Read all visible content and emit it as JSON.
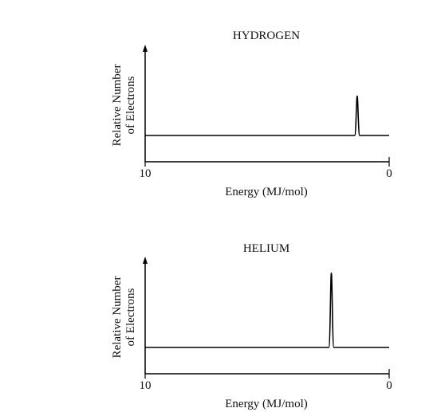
{
  "chart_data": [
    {
      "type": "line",
      "title": "HYDROGEN",
      "xlabel": "Energy (MJ/mol)",
      "ylabel": [
        "Relative Number",
        "of Electrons"
      ],
      "xlim": [
        10,
        0
      ],
      "x_tick_labels": [
        "10",
        "0"
      ],
      "x_reversed": true,
      "series": [
        {
          "peaks": [
            {
              "energy": 1.31,
              "relative_height": 0.45
            }
          ]
        }
      ],
      "grid": false,
      "legend": "none"
    },
    {
      "type": "line",
      "title": "HELIUM",
      "xlabel": "Energy (MJ/mol)",
      "ylabel": [
        "Relative Number",
        "of Electrons"
      ],
      "xlim": [
        10,
        0
      ],
      "x_tick_labels": [
        "10",
        "0"
      ],
      "x_reversed": true,
      "series": [
        {
          "peaks": [
            {
              "energy": 2.37,
              "relative_height": 0.85
            }
          ]
        }
      ],
      "grid": false,
      "legend": "none"
    }
  ]
}
